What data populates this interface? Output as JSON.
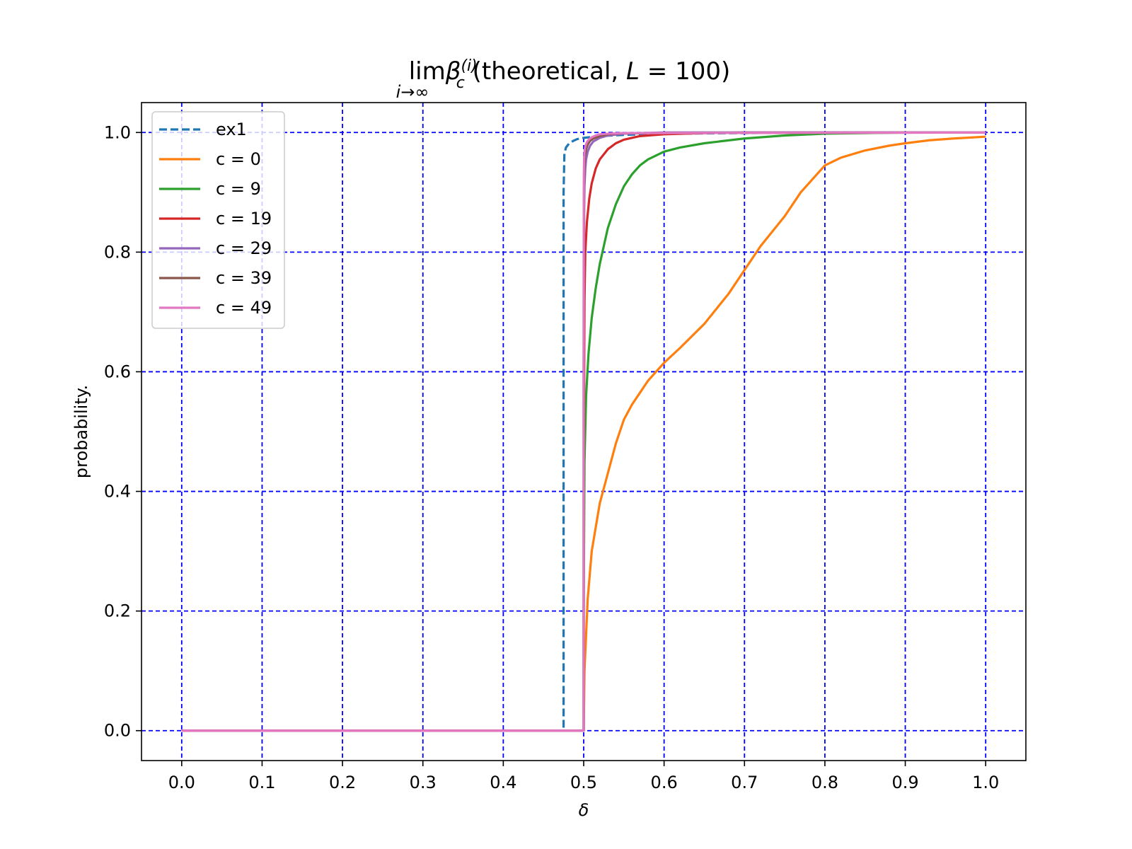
{
  "chart_data": {
    "type": "line",
    "title": {
      "lim": "lim",
      "beta": "β",
      "sub": "c",
      "sup": "(i)",
      "under": "i→∞",
      "rest": " (theoretical, ",
      "var": "L",
      "eq": " = 100)"
    },
    "xlabel": "δ",
    "ylabel": "probability.",
    "xlim": [
      -0.05,
      1.05
    ],
    "ylim": [
      -0.05,
      1.05
    ],
    "xticks": [
      0.0,
      0.1,
      0.2,
      0.3,
      0.4,
      0.5,
      0.6,
      0.7,
      0.8,
      0.9,
      1.0
    ],
    "yticks": [
      0.0,
      0.2,
      0.4,
      0.6,
      0.8,
      1.0
    ],
    "xtick_labels": [
      "0.0",
      "0.1",
      "0.2",
      "0.3",
      "0.4",
      "0.5",
      "0.6",
      "0.7",
      "0.8",
      "0.9",
      "1.0"
    ],
    "ytick_labels": [
      "0.0",
      "0.2",
      "0.4",
      "0.6",
      "0.8",
      "1.0"
    ],
    "grid": true,
    "grid_color": "#0000ff",
    "legend_position": "upper-left",
    "series": [
      {
        "name": "ex1",
        "style": "dashed",
        "color": "#1f77b4",
        "x": [
          0.0,
          0.475,
          0.475,
          0.476,
          0.478,
          0.482,
          0.487,
          0.492,
          0.5,
          0.52,
          0.55,
          0.6,
          0.7,
          0.8,
          1.0
        ],
        "y": [
          0.0,
          0.0,
          0.9,
          0.965,
          0.975,
          0.982,
          0.986,
          0.989,
          0.991,
          0.994,
          0.996,
          0.998,
          0.999,
          1.0,
          1.0
        ]
      },
      {
        "name": "c = 0",
        "style": "solid",
        "color": "#ff7f0e",
        "x": [
          0.0,
          0.5,
          0.501,
          0.505,
          0.51,
          0.52,
          0.53,
          0.54,
          0.55,
          0.56,
          0.57,
          0.58,
          0.59,
          0.6,
          0.62,
          0.65,
          0.68,
          0.7,
          0.72,
          0.75,
          0.77,
          0.79,
          0.8,
          0.82,
          0.85,
          0.88,
          0.9,
          0.93,
          0.96,
          1.0
        ],
        "y": [
          0.0,
          0.0,
          0.1,
          0.22,
          0.3,
          0.38,
          0.43,
          0.48,
          0.52,
          0.545,
          0.565,
          0.585,
          0.6,
          0.615,
          0.64,
          0.68,
          0.73,
          0.77,
          0.81,
          0.86,
          0.9,
          0.93,
          0.945,
          0.958,
          0.97,
          0.978,
          0.982,
          0.987,
          0.99,
          0.993
        ]
      },
      {
        "name": "c = 9",
        "style": "solid",
        "color": "#2ca02c",
        "x": [
          0.0,
          0.5,
          0.5,
          0.501,
          0.503,
          0.506,
          0.51,
          0.515,
          0.52,
          0.53,
          0.54,
          0.55,
          0.56,
          0.57,
          0.58,
          0.6,
          0.62,
          0.65,
          0.7,
          0.75,
          0.8,
          0.9,
          1.0
        ],
        "y": [
          0.0,
          0.0,
          0.2,
          0.45,
          0.56,
          0.63,
          0.69,
          0.74,
          0.78,
          0.84,
          0.88,
          0.91,
          0.93,
          0.945,
          0.955,
          0.968,
          0.975,
          0.982,
          0.99,
          0.995,
          0.998,
          1.0,
          1.0
        ]
      },
      {
        "name": "c = 19",
        "style": "solid",
        "color": "#d62728",
        "x": [
          0.0,
          0.5,
          0.5,
          0.501,
          0.502,
          0.504,
          0.507,
          0.51,
          0.515,
          0.52,
          0.53,
          0.54,
          0.55,
          0.57,
          0.6,
          0.65,
          0.7,
          1.0
        ],
        "y": [
          0.0,
          0.0,
          0.4,
          0.72,
          0.8,
          0.85,
          0.89,
          0.915,
          0.94,
          0.955,
          0.972,
          0.982,
          0.988,
          0.994,
          0.997,
          0.999,
          1.0,
          1.0
        ]
      },
      {
        "name": "c = 29",
        "style": "solid",
        "color": "#9467bd",
        "x": [
          0.0,
          0.5,
          0.5,
          0.5005,
          0.501,
          0.502,
          0.503,
          0.505,
          0.508,
          0.512,
          0.52,
          0.53,
          0.55,
          0.6,
          1.0
        ],
        "y": [
          0.0,
          0.0,
          0.6,
          0.86,
          0.91,
          0.94,
          0.955,
          0.968,
          0.978,
          0.985,
          0.991,
          0.995,
          0.998,
          1.0,
          1.0
        ]
      },
      {
        "name": "c = 39",
        "style": "solid",
        "color": "#8c564b",
        "x": [
          0.0,
          0.5,
          0.5,
          0.5003,
          0.5008,
          0.5015,
          0.503,
          0.505,
          0.508,
          0.512,
          0.52,
          0.53,
          0.55,
          1.0
        ],
        "y": [
          0.0,
          0.0,
          0.7,
          0.9,
          0.94,
          0.96,
          0.972,
          0.98,
          0.986,
          0.99,
          0.994,
          0.997,
          0.999,
          1.0
        ]
      },
      {
        "name": "c = 49",
        "style": "solid",
        "color": "#e377c2",
        "x": [
          0.0,
          0.5,
          0.5,
          0.5002,
          0.5005,
          0.501,
          0.502,
          0.504,
          0.507,
          0.51,
          0.515,
          0.52,
          0.53,
          0.55,
          1.0
        ],
        "y": [
          0.0,
          0.0,
          0.78,
          0.93,
          0.955,
          0.968,
          0.977,
          0.984,
          0.989,
          0.992,
          0.995,
          0.997,
          0.998,
          0.999,
          1.0
        ]
      }
    ]
  }
}
